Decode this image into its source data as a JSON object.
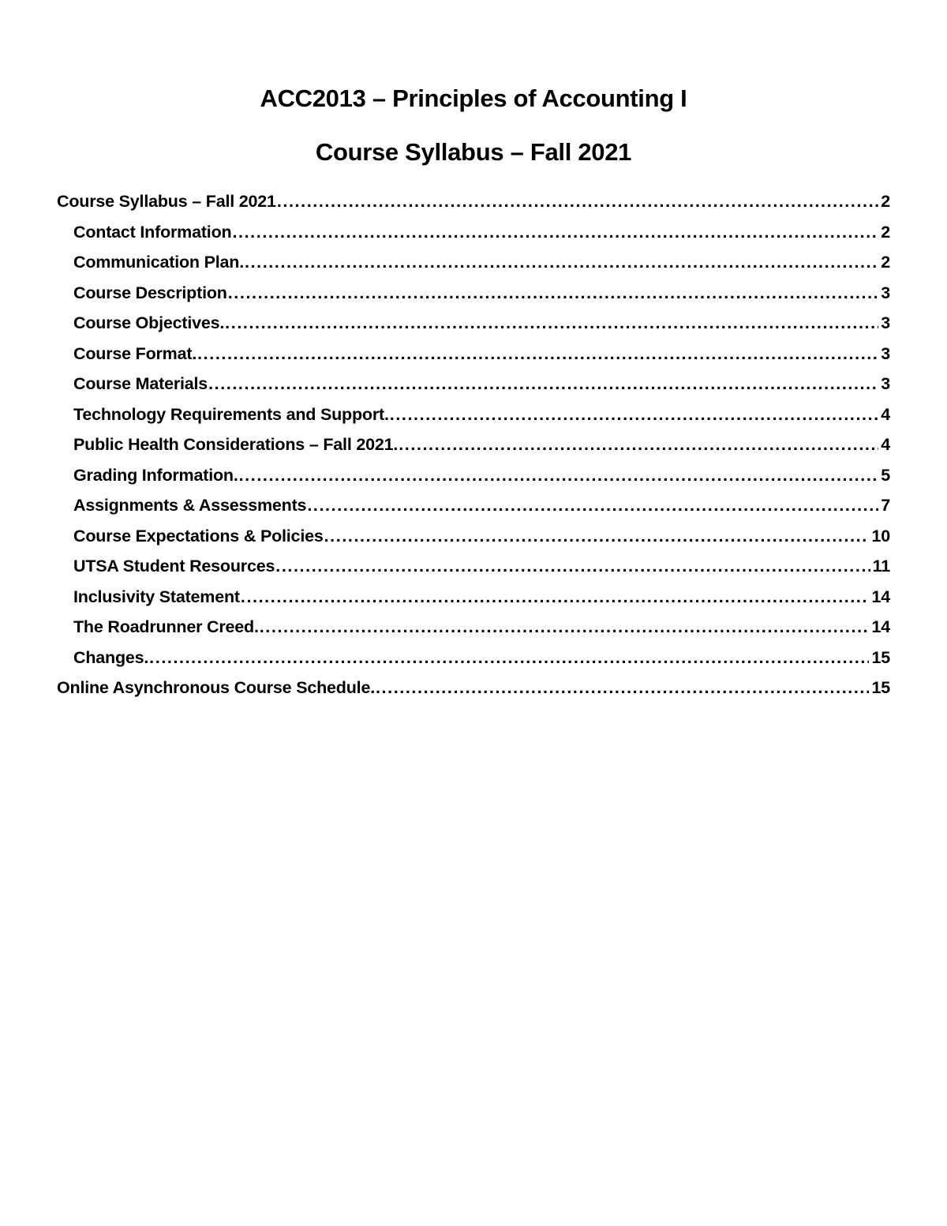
{
  "document": {
    "title": "ACC2013 – Principles of Accounting I",
    "subtitle": "Course Syllabus – Fall 2021"
  },
  "colors": {
    "text": "#000000",
    "background": "#ffffff"
  },
  "toc": {
    "entries": [
      {
        "label": "Course Syllabus – Fall 2021",
        "page": "2",
        "level": 1
      },
      {
        "label": "Contact Information",
        "page": "2",
        "level": 2
      },
      {
        "label": "Communication Plan.",
        "page": "2",
        "level": 2
      },
      {
        "label": "Course Description",
        "page": "3",
        "level": 2
      },
      {
        "label": "Course Objectives.",
        "page": "3",
        "level": 2
      },
      {
        "label": "Course Format.",
        "page": "3",
        "level": 2
      },
      {
        "label": "Course Materials",
        "page": "3",
        "level": 2
      },
      {
        "label": "Technology Requirements and Support.",
        "page": "4",
        "level": 2
      },
      {
        "label": "Public Health Considerations – Fall 2021.",
        "page": "4",
        "level": 2
      },
      {
        "label": "Grading Information.",
        "page": "5",
        "level": 2
      },
      {
        "label": "Assignments & Assessments",
        "page": "7",
        "level": 2
      },
      {
        "label": "Course Expectations & Policies",
        "page": "10",
        "level": 2
      },
      {
        "label": "UTSA Student Resources",
        "page": "11",
        "level": 2
      },
      {
        "label": "Inclusivity Statement",
        "page": "14",
        "level": 2
      },
      {
        "label": "The Roadrunner Creed.",
        "page": "14",
        "level": 2
      },
      {
        "label": "Changes.",
        "page": "15",
        "level": 2
      },
      {
        "label": "Online Asynchronous Course Schedule.",
        "page": "15",
        "level": 1
      }
    ]
  }
}
